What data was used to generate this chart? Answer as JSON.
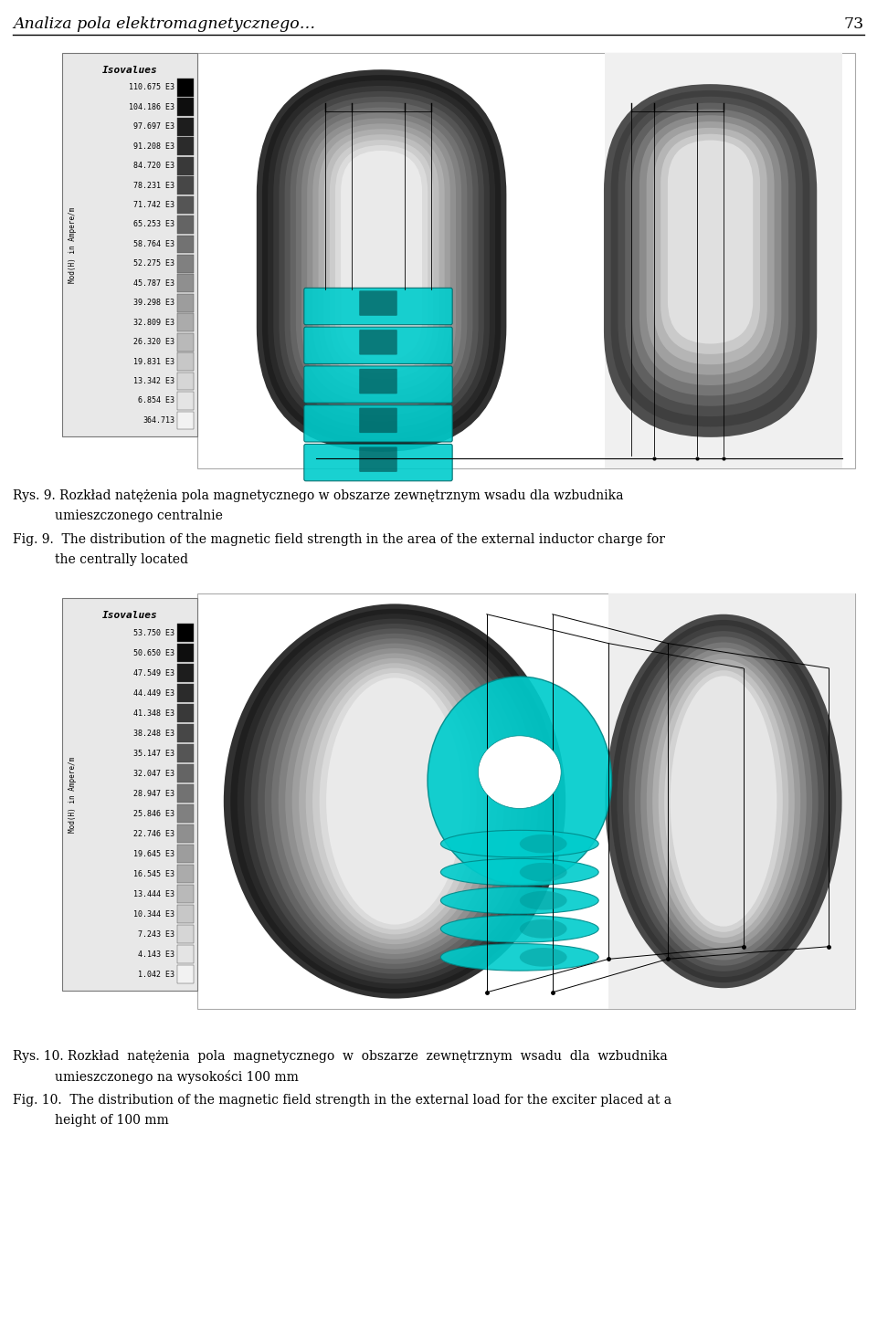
{
  "page_title": "Analiza pola elektromagnetycznego…",
  "page_number": "73",
  "fig1": {
    "isovalues_title": "Isovalues",
    "ylabel": "Mod(H) in Ampere/m",
    "labels": [
      "110.675 E3",
      "104.186 E3",
      "97.697 E3",
      "91.208 E3",
      "84.720 E3",
      "78.231 E3",
      "71.742 E3",
      "65.253 E3",
      "58.764 E3",
      "52.275 E3",
      "45.787 E3",
      "39.298 E3",
      "32.809 E3",
      "26.320 E3",
      "19.831 E3",
      "13.342 E3",
      "6.854 E3",
      "364.713"
    ],
    "caption_pl_1": "Rys. 9. Rozkład natężenia pola magnetycznego w obszarze zewnętrznym wsadu dla wzbudnika",
    "caption_pl_2": "umieszczonego centralnie",
    "caption_en_1": "Fig. 9.  The distribution of the magnetic field strength in the area of the external inductor charge for",
    "caption_en_2": "the centrally located"
  },
  "fig2": {
    "isovalues_title": "Isovalues",
    "ylabel": "Mod(H) in Ampere/m",
    "labels": [
      "53.750 E3",
      "50.650 E3",
      "47.549 E3",
      "44.449 E3",
      "41.348 E3",
      "38.248 E3",
      "35.147 E3",
      "32.047 E3",
      "28.947 E3",
      "25.846 E3",
      "22.746 E3",
      "19.645 E3",
      "16.545 E3",
      "13.444 E3",
      "10.344 E3",
      "7.243 E3",
      "4.143 E3",
      "1.042 E3"
    ],
    "caption_pl_1": "Rys. 10. Rozkład  natężenia  pola  magnetycznego  w  obszarze  zewnętrznym  wsadu  dla  wzbudnika",
    "caption_pl_2": "umieszczonego na wysokości 100 mm",
    "caption_en_1": "Fig. 10.  The distribution of the magnetic field strength in the external load for the exciter placed at a",
    "caption_en_2": "height of 100 mm"
  },
  "bg_color": "#ffffff"
}
